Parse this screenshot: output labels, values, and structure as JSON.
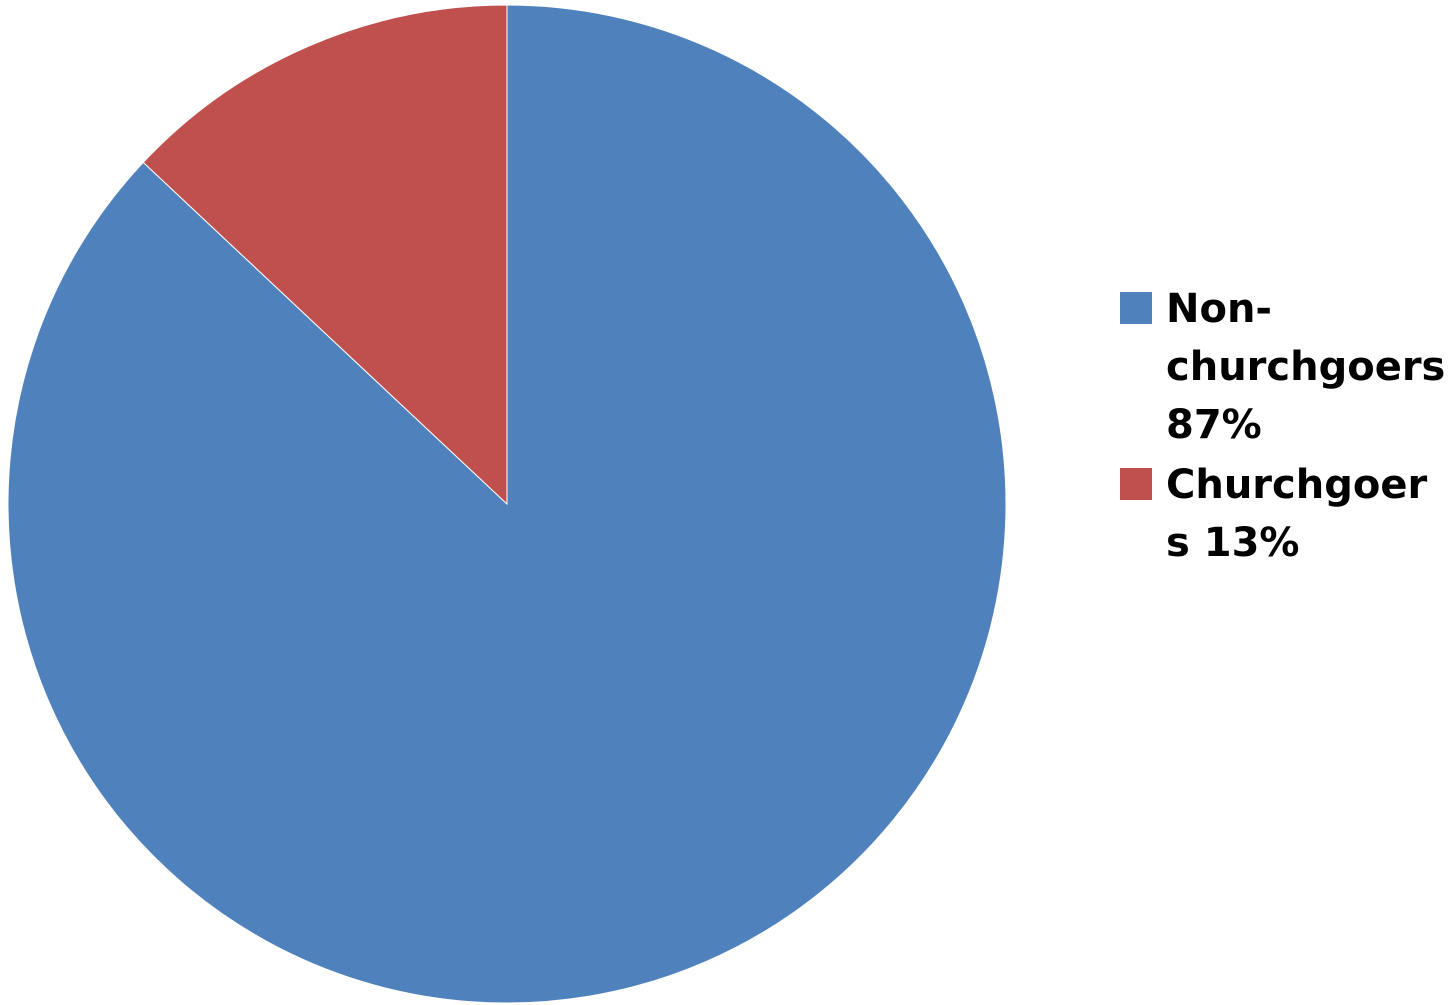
{
  "chart_data": {
    "type": "pie",
    "title": "",
    "categories": [
      "Non-churchgoers",
      "Churchgoers"
    ],
    "values": [
      87,
      13
    ],
    "unit": "%",
    "start_angle_deg": 0,
    "direction": "clockwise",
    "legend_position": "right",
    "colors": [
      "#4F81BD",
      "#C0504D"
    ],
    "legend": [
      {
        "label": "Non-churchgoers 87%",
        "color": "#4F81BD"
      },
      {
        "label": "Churchgoers 13%",
        "color": "#C0504D"
      }
    ]
  }
}
